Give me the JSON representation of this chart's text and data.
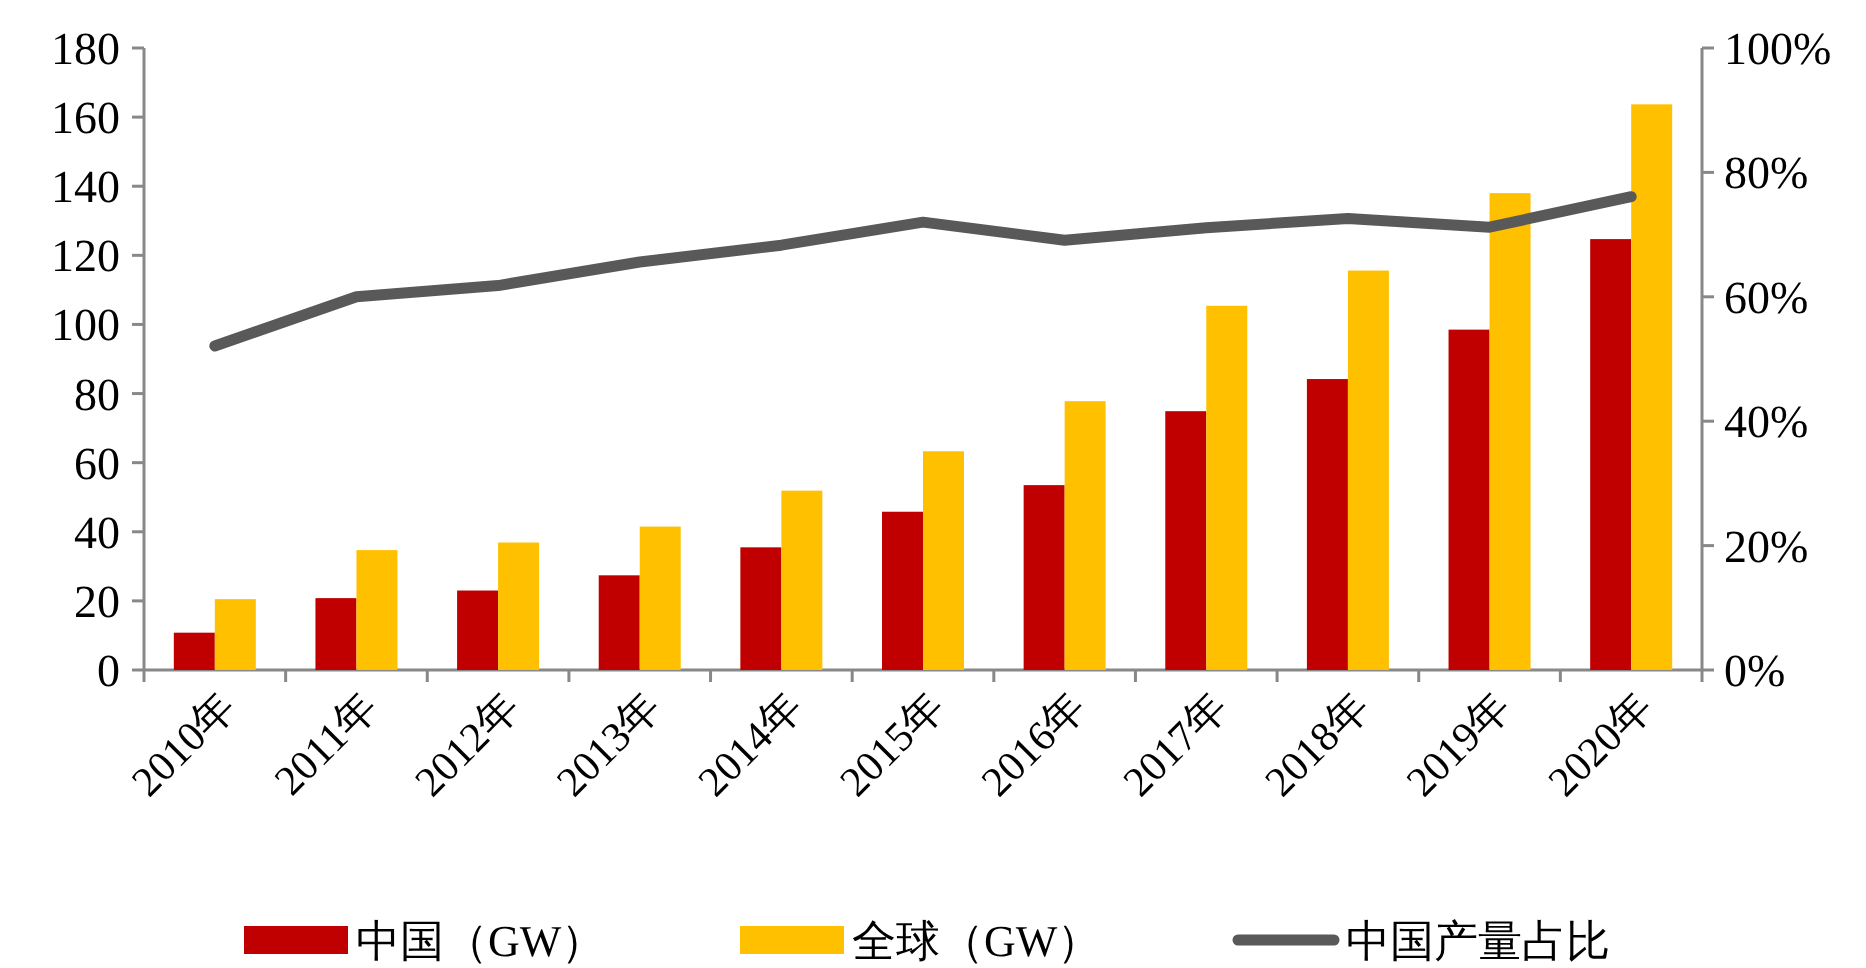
{
  "chart_data": {
    "type": "bar",
    "categories": [
      "2010年",
      "2011年",
      "2012年",
      "2013年",
      "2014年",
      "2015年",
      "2016年",
      "2017年",
      "2018年",
      "2019年",
      "2020年"
    ],
    "series": [
      {
        "name": "中国（GW）",
        "color": "#c00000",
        "values": [
          10.8,
          20.8,
          23,
          27.4,
          35.5,
          45.8,
          53.5,
          74.9,
          84.2,
          98.5,
          124.7
        ]
      },
      {
        "name": "全球（GW）",
        "color": "#ffc000",
        "values": [
          20.5,
          34.7,
          36.9,
          41.5,
          51.9,
          63.3,
          77.8,
          105.4,
          115.6,
          138,
          163.7
        ]
      },
      {
        "name": "中国产量占比",
        "color": "#595959",
        "type": "line",
        "axis": "y2",
        "values": [
          52.1,
          60.0,
          61.8,
          65.6,
          68.3,
          72.0,
          69.1,
          71.1,
          72.6,
          71.2,
          76.1
        ]
      }
    ],
    "ylim": [
      0,
      180
    ],
    "yticks": [
      0,
      20,
      40,
      60,
      80,
      100,
      120,
      140,
      160,
      180
    ],
    "y2lim": [
      0,
      100
    ],
    "y2ticks": [
      {
        "value": 0,
        "label": "0%"
      },
      {
        "value": 20,
        "label": "20%"
      },
      {
        "value": 40,
        "label": "40%"
      },
      {
        "value": 60,
        "label": "60%"
      },
      {
        "value": 80,
        "label": "80%"
      },
      {
        "value": 100,
        "label": "100%"
      }
    ],
    "legend": "bottom"
  }
}
